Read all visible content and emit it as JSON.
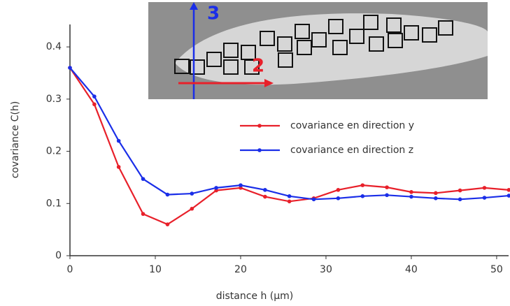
{
  "chart_data": {
    "type": "line",
    "x_label": "distance h (µm)",
    "y_label": "covariance C(h)",
    "x": [
      0,
      2.86,
      5.71,
      8.57,
      11.43,
      14.29,
      17.14,
      20,
      22.86,
      25.71,
      28.57,
      31.43,
      34.29,
      37.14,
      40,
      42.86,
      45.71,
      48.57,
      51.43
    ],
    "series": [
      {
        "name": "covariance en direction y",
        "color": "#e8202a",
        "values": [
          0.36,
          0.29,
          0.17,
          0.08,
          0.06,
          0.09,
          0.125,
          0.13,
          0.113,
          0.104,
          0.11,
          0.126,
          0.135,
          0.131,
          0.122,
          0.12,
          0.125,
          0.13,
          0.126
        ]
      },
      {
        "name": "covariance en direction z",
        "color": "#1a2ee8",
        "values": [
          0.36,
          0.305,
          0.22,
          0.147,
          0.117,
          0.119,
          0.13,
          0.135,
          0.126,
          0.114,
          0.108,
          0.11,
          0.114,
          0.116,
          0.113,
          0.11,
          0.108,
          0.111,
          0.115
        ]
      }
    ],
    "xlim": [
      0,
      51.4
    ],
    "ylim": [
      0,
      0.443
    ],
    "xticks": [
      0,
      10,
      20,
      30,
      40,
      50
    ],
    "yticks": [
      0,
      0.1,
      0.2,
      0.3,
      0.4
    ],
    "inset_labels": [
      "3",
      "2"
    ]
  }
}
